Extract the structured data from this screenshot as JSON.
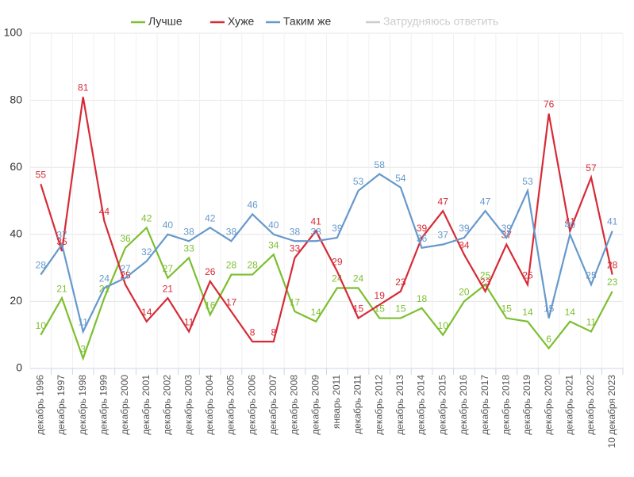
{
  "chart_data": {
    "type": "line",
    "categories": [
      "декабрь 1996",
      "декабрь 1997",
      "декабрь 1998",
      "декабрь 1999",
      "декабрь 2000",
      "декабрь 2001",
      "декабрь 2002",
      "декабрь 2003",
      "декабрь 2004",
      "декабрь 2005",
      "декабрь 2006",
      "декабрь 2007",
      "декабрь 2008",
      "декабрь 2009",
      "январь 2011",
      "декабрь 2011",
      "декабрь 2012",
      "декабрь 2013",
      "декабрь 2014",
      "декабрь 2015",
      "декабрь 2016",
      "декабрь 2017",
      "декабрь 2018",
      "декабрь 2019",
      "декабрь 2020",
      "декабрь 2021",
      "декабрь 2022",
      "10 декабря 2023"
    ],
    "series": [
      {
        "name": "Лучше",
        "color": "#7cbf2f",
        "values": [
          10,
          21,
          3,
          21,
          36,
          42,
          27,
          33,
          16,
          28,
          28,
          34,
          17,
          14,
          24,
          24,
          15,
          15,
          18,
          10,
          20,
          25,
          15,
          14,
          6,
          14,
          11,
          23
        ]
      },
      {
        "name": "Хуже",
        "color": "#d62b36",
        "values": [
          55,
          35,
          81,
          44,
          25,
          14,
          21,
          11,
          26,
          17,
          8,
          8,
          33,
          41,
          29,
          15,
          19,
          23,
          39,
          47,
          34,
          23,
          37,
          25,
          76,
          41,
          57,
          28
        ]
      },
      {
        "name": "Таким же",
        "color": "#6699cc",
        "values": [
          28,
          37,
          11,
          24,
          27,
          32,
          40,
          38,
          42,
          38,
          46,
          40,
          38,
          38,
          39,
          53,
          58,
          54,
          36,
          37,
          39,
          47,
          39,
          53,
          15,
          40,
          25,
          41
        ]
      },
      {
        "name": "Затрудняюсь ответить",
        "color": "#cccccc",
        "visible": false
      }
    ],
    "ylim": [
      0,
      100
    ],
    "yticks": [
      0,
      20,
      40,
      60,
      80,
      100
    ],
    "grid": true,
    "legend": "top"
  }
}
